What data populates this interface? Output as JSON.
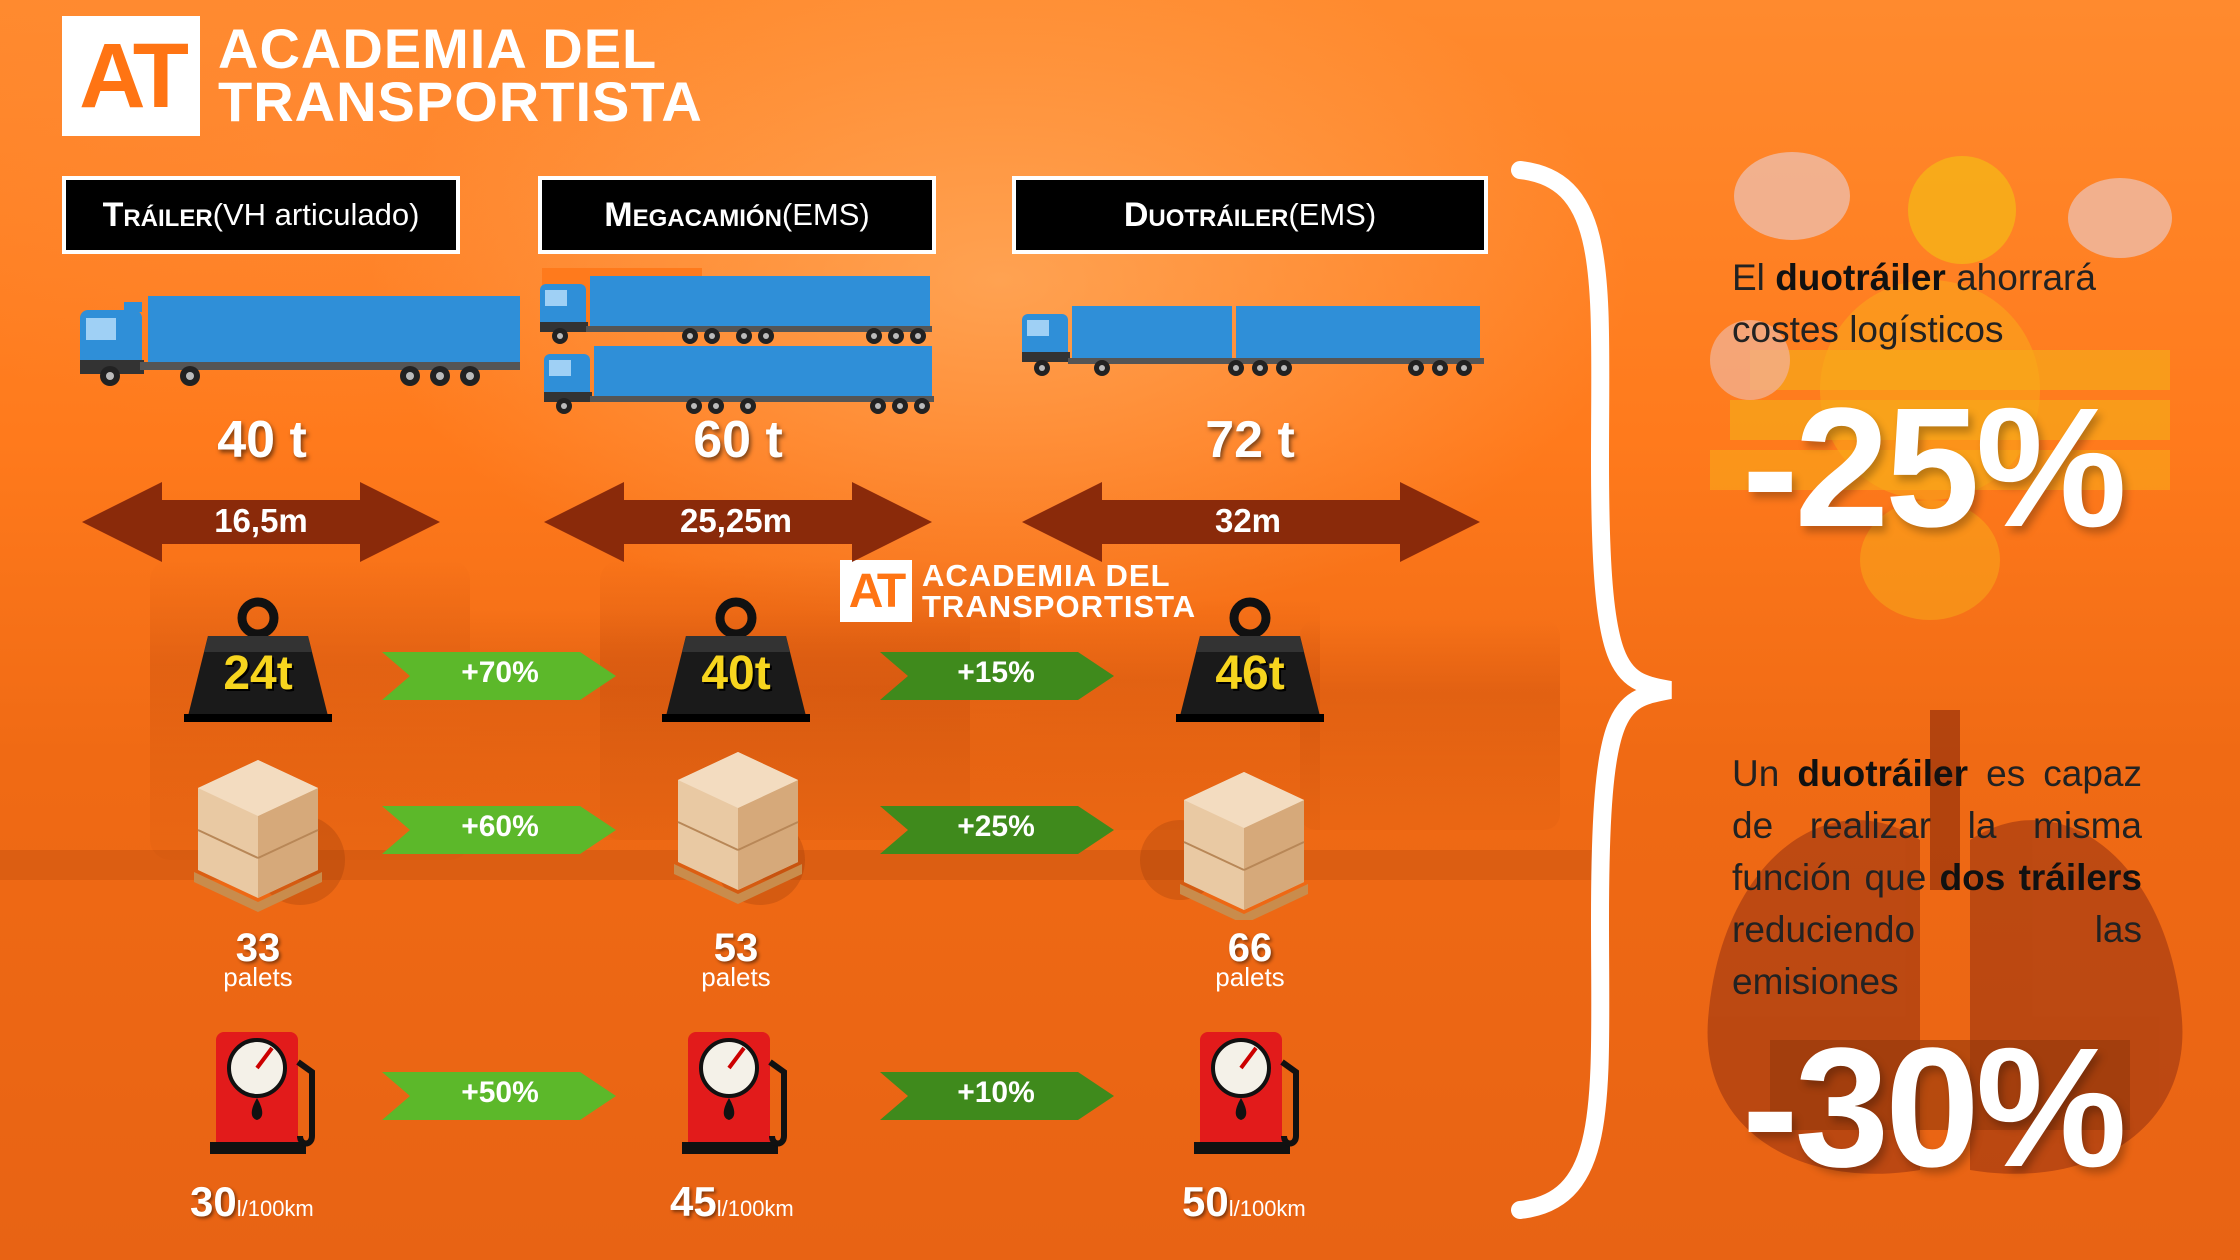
{
  "brand": {
    "mark": "AT",
    "line1": "ACADEMIA DEL",
    "line2": "TRANSPORTISTA"
  },
  "colors": {
    "background": "#ff7a1c",
    "truck_blue": "#2f8fd8",
    "arrow_brown": "#8a2a0a",
    "green_arrow": "#5cb82a",
    "dark_green_arrow": "#3f8a1c",
    "weight_yellow": "#f7d51e",
    "pump_red": "#e21b1b"
  },
  "vehicles": [
    {
      "name": "Tráiler",
      "suffix": " (VH articulado)",
      "tons": "40 t",
      "length": "16,5m",
      "weight": "24t",
      "pallets": "33",
      "pallets_unit": "palets",
      "fuel": "30",
      "fuel_unit": "l/100km"
    },
    {
      "name": "Megacamión",
      "suffix": " (EMS)",
      "tons": "60 t",
      "length": "25,25m",
      "weight": "40t",
      "pallets": "53",
      "pallets_unit": "palets",
      "fuel": "45",
      "fuel_unit": "l/100km"
    },
    {
      "name": "Duotráiler",
      "suffix": " (EMS)",
      "tons": "72 t",
      "length": "32m",
      "weight": "46t",
      "pallets": "66",
      "pallets_unit": "palets",
      "fuel": "50",
      "fuel_unit": "l/100km"
    }
  ],
  "increments": {
    "weight": [
      "+70%",
      "+15%"
    ],
    "pallets": [
      "+60%",
      "+25%"
    ],
    "fuel": [
      "+50%",
      "+10%"
    ]
  },
  "panel_costs": {
    "pre": "El ",
    "bold": "duotráiler",
    "post": " ahorrará costes logísticos",
    "value": "-25%",
    "icon": "euro-coins-icon"
  },
  "panel_emissions": {
    "pre": "Un ",
    "bold1": "duotráiler",
    "mid": " es capaz de realizar la misma función que ",
    "bold2": "dos tráilers",
    "post": " reduciendo las emisiones",
    "value": "-30%",
    "icon": "lungs-icon"
  }
}
